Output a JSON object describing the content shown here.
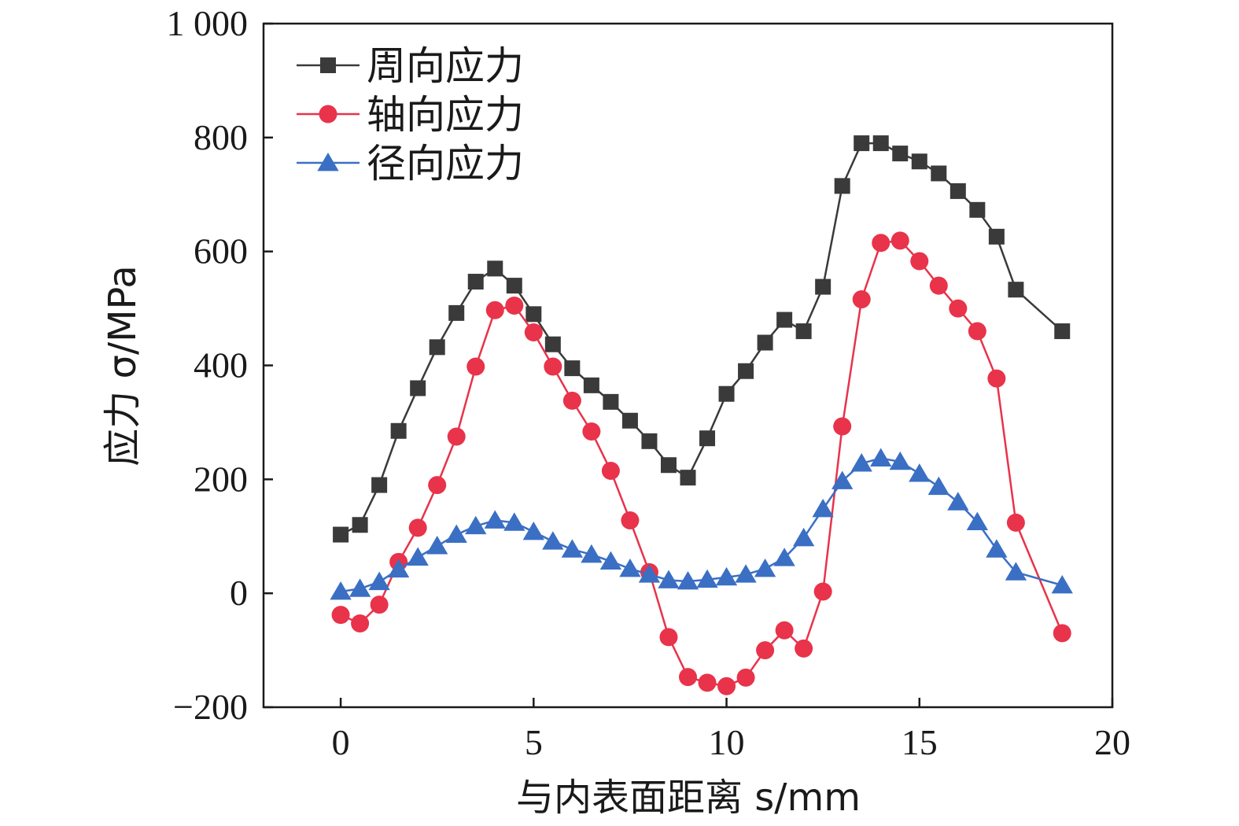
{
  "chart_data": {
    "type": "line",
    "xlabel": "与内表面距离 s/mm",
    "ylabel": "应力 σ/MPa",
    "xlim": [
      -2,
      20
    ],
    "ylim": [
      -200,
      1000
    ],
    "xticks": [
      "0",
      "5",
      "10",
      "15",
      "20"
    ],
    "yticks": [
      "−200",
      "0",
      "200",
      "400",
      "600",
      "800",
      "1 000"
    ],
    "xtick_values": [
      0,
      5,
      10,
      15,
      20
    ],
    "ytick_values": [
      -200,
      0,
      200,
      400,
      600,
      800,
      1000
    ],
    "grid": false,
    "legend_position": "top-left",
    "x": [
      0,
      0.5,
      1,
      1.5,
      2,
      2.5,
      3,
      3.5,
      4,
      4.5,
      5,
      5.5,
      6,
      6.5,
      7,
      7.5,
      8,
      8.5,
      9,
      9.5,
      10,
      10.5,
      11,
      11.5,
      12,
      12.5,
      13,
      13.5,
      14,
      14.5,
      15,
      15.5,
      16,
      16.5,
      17,
      17.5,
      18.7
    ],
    "series": [
      {
        "name": "周向应力",
        "color": "#3a3a3a",
        "marker": "square",
        "values": [
          103,
          120,
          190,
          285,
          360,
          432,
          492,
          547,
          570,
          540,
          490,
          437,
          395,
          365,
          336,
          303,
          267,
          225,
          203,
          272,
          350,
          390,
          440,
          480,
          460,
          538,
          715,
          790,
          790,
          772,
          758,
          737,
          706,
          673,
          626,
          533,
          460
        ]
      },
      {
        "name": "轴向应力",
        "color": "#e8334a",
        "marker": "circle",
        "values": [
          -38,
          -53,
          -20,
          55,
          115,
          190,
          275,
          398,
          497,
          505,
          458,
          398,
          338,
          284,
          215,
          128,
          37,
          -77,
          -147,
          -157,
          -163,
          -148,
          -100,
          -65,
          -97,
          3,
          293,
          516,
          615,
          619,
          583,
          540,
          500,
          460,
          377,
          124,
          -70
        ]
      },
      {
        "name": "径向应力",
        "color": "#3a6fc4",
        "marker": "triangle",
        "values": [
          3,
          8,
          20,
          42,
          63,
          83,
          103,
          118,
          128,
          124,
          108,
          91,
          77,
          68,
          56,
          43,
          33,
          23,
          21,
          24,
          28,
          33,
          43,
          62,
          97,
          148,
          197,
          228,
          237,
          231,
          210,
          187,
          160,
          125,
          77,
          37,
          14
        ]
      }
    ]
  }
}
